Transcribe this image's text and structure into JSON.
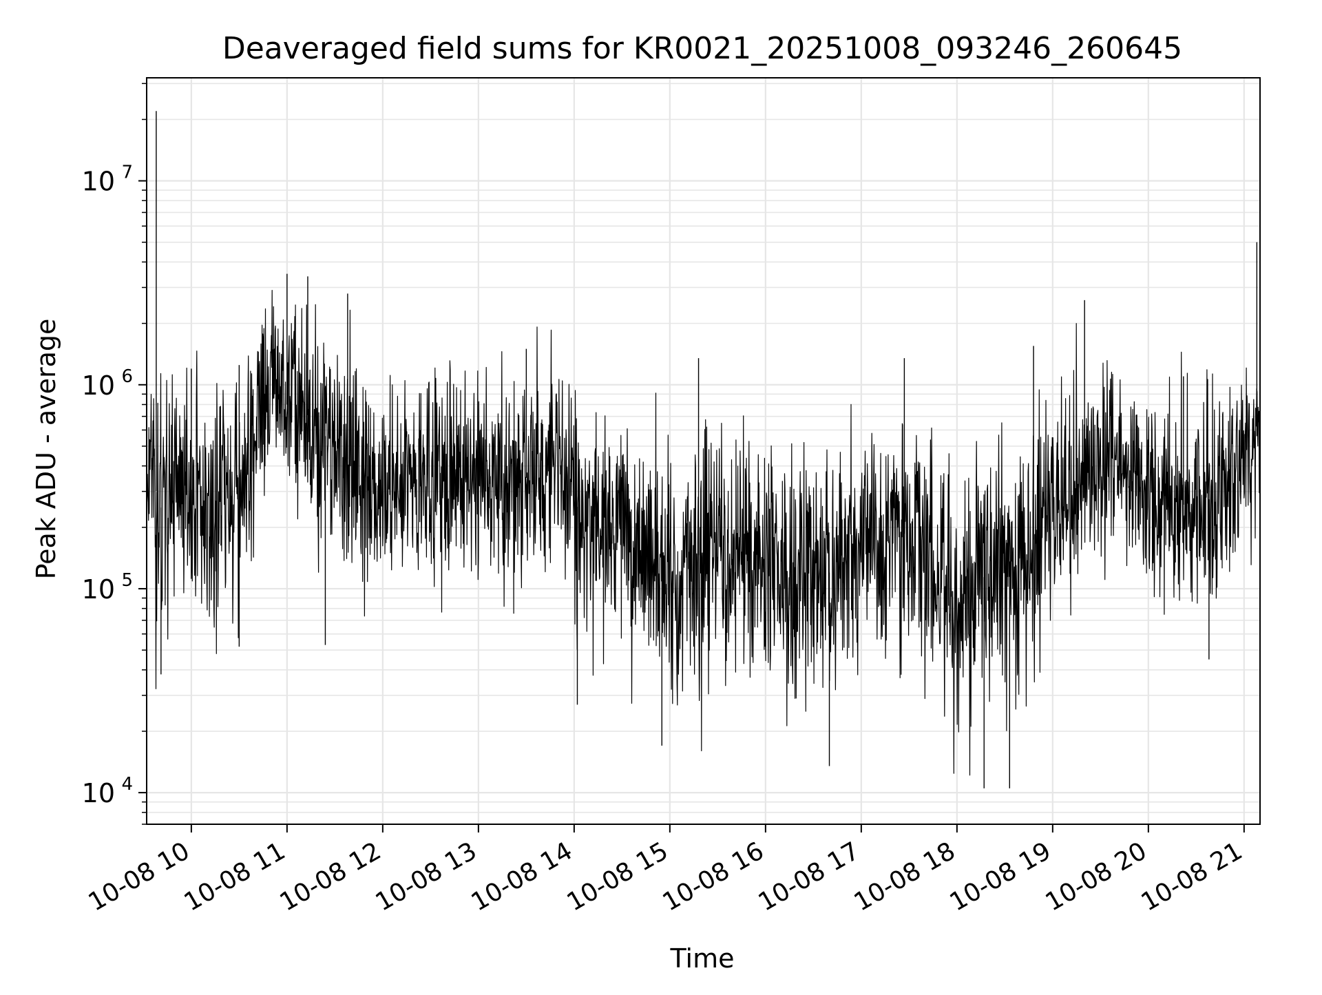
{
  "chart_data": {
    "type": "line",
    "title": "Deaveraged field sums for KR0021_20251008_093246_260645",
    "xlabel": "Time",
    "ylabel": "Peak ADU - average",
    "yscale": "log",
    "ylim": [
      7000,
      32000000
    ],
    "xlim": [
      "2025-10-08 09:32",
      "2025-10-08 21:10"
    ],
    "grid": true,
    "line_color": "#000000",
    "grid_color": "#e6e6e6",
    "y_ticks": [
      {
        "value": 10000,
        "base": "10",
        "exp": "4"
      },
      {
        "value": 100000,
        "base": "10",
        "exp": "5"
      },
      {
        "value": 1000000,
        "base": "10",
        "exp": "6"
      },
      {
        "value": 10000000,
        "base": "10",
        "exp": "7"
      }
    ],
    "x_ticks": [
      {
        "time": "2025-10-08 10:00",
        "label": "10-08 10"
      },
      {
        "time": "2025-10-08 11:00",
        "label": "10-08 11"
      },
      {
        "time": "2025-10-08 12:00",
        "label": "10-08 12"
      },
      {
        "time": "2025-10-08 13:00",
        "label": "10-08 13"
      },
      {
        "time": "2025-10-08 14:00",
        "label": "10-08 14"
      },
      {
        "time": "2025-10-08 15:00",
        "label": "10-08 15"
      },
      {
        "time": "2025-10-08 16:00",
        "label": "10-08 16"
      },
      {
        "time": "2025-10-08 17:00",
        "label": "10-08 17"
      },
      {
        "time": "2025-10-08 18:00",
        "label": "10-08 18"
      },
      {
        "time": "2025-10-08 19:00",
        "label": "10-08 19"
      },
      {
        "time": "2025-10-08 20:00",
        "label": "10-08 20"
      },
      {
        "time": "2025-10-08 21:00",
        "label": "10-08 21"
      }
    ],
    "series": [
      {
        "x": [
          "2025-10-08 09:32",
          "2025-10-08 09:36",
          "2025-10-08 09:40",
          "2025-10-08 09:45",
          "2025-10-08 09:50",
          "2025-10-08 09:55",
          "2025-10-08 10:00",
          "2025-10-08 10:05",
          "2025-10-08 10:10",
          "2025-10-08 10:15",
          "2025-10-08 10:20",
          "2025-10-08 10:25",
          "2025-10-08 10:30",
          "2025-10-08 10:35",
          "2025-10-08 10:40",
          "2025-10-08 10:45",
          "2025-10-08 10:50",
          "2025-10-08 10:55",
          "2025-10-08 11:00",
          "2025-10-08 11:05",
          "2025-10-08 11:10",
          "2025-10-08 11:15",
          "2025-10-08 11:20",
          "2025-10-08 11:25",
          "2025-10-08 11:30",
          "2025-10-08 11:35",
          "2025-10-08 11:40",
          "2025-10-08 11:45",
          "2025-10-08 11:50",
          "2025-10-08 11:55",
          "2025-10-08 12:00",
          "2025-10-08 12:10",
          "2025-10-08 12:20",
          "2025-10-08 12:30",
          "2025-10-08 12:40",
          "2025-10-08 12:50",
          "2025-10-08 13:00",
          "2025-10-08 13:10",
          "2025-10-08 13:20",
          "2025-10-08 13:30",
          "2025-10-08 13:40",
          "2025-10-08 13:50",
          "2025-10-08 14:00",
          "2025-10-08 14:10",
          "2025-10-08 14:20",
          "2025-10-08 14:30",
          "2025-10-08 14:40",
          "2025-10-08 14:50",
          "2025-10-08 15:00",
          "2025-10-08 15:10",
          "2025-10-08 15:20",
          "2025-10-08 15:30",
          "2025-10-08 15:40",
          "2025-10-08 15:50",
          "2025-10-08 16:00",
          "2025-10-08 16:10",
          "2025-10-08 16:20",
          "2025-10-08 16:30",
          "2025-10-08 16:40",
          "2025-10-08 16:50",
          "2025-10-08 17:00",
          "2025-10-08 17:10",
          "2025-10-08 17:20",
          "2025-10-08 17:30",
          "2025-10-08 17:40",
          "2025-10-08 17:50",
          "2025-10-08 18:00",
          "2025-10-08 18:10",
          "2025-10-08 18:20",
          "2025-10-08 18:30",
          "2025-10-08 18:40",
          "2025-10-08 18:50",
          "2025-10-08 19:00",
          "2025-10-08 19:10",
          "2025-10-08 19:20",
          "2025-10-08 19:30",
          "2025-10-08 19:40",
          "2025-10-08 19:50",
          "2025-10-08 20:00",
          "2025-10-08 20:10",
          "2025-10-08 20:20",
          "2025-10-08 20:30",
          "2025-10-08 20:40",
          "2025-10-08 20:50",
          "2025-10-08 21:00",
          "2025-10-08 21:05",
          "2025-10-08 21:10"
        ],
        "median": [
          450000,
          350000,
          250000,
          250000,
          380000,
          300000,
          280000,
          250000,
          230000,
          240000,
          300000,
          350000,
          320000,
          380000,
          500000,
          700000,
          1000000,
          900000,
          800000,
          750000,
          800000,
          650000,
          600000,
          550000,
          500000,
          450000,
          420000,
          350000,
          320000,
          300000,
          280000,
          300000,
          310000,
          330000,
          350000,
          340000,
          330000,
          320000,
          320000,
          350000,
          380000,
          340000,
          260000,
          220000,
          200000,
          180000,
          160000,
          140000,
          120000,
          130000,
          150000,
          160000,
          170000,
          150000,
          130000,
          120000,
          120000,
          110000,
          120000,
          130000,
          160000,
          180000,
          200000,
          180000,
          140000,
          110000,
          80000,
          100000,
          120000,
          130000,
          150000,
          180000,
          230000,
          300000,
          380000,
          450000,
          420000,
          350000,
          280000,
          270000,
          260000,
          250000,
          280000,
          320000,
          400000,
          500000,
          600000
        ],
        "spread": [
          0.45,
          0.55,
          0.6,
          0.55,
          0.45,
          0.5,
          0.5,
          0.45,
          0.45,
          0.5,
          0.5,
          0.5,
          0.5,
          0.5,
          0.5,
          0.45,
          0.42,
          0.42,
          0.45,
          0.45,
          0.45,
          0.45,
          0.45,
          0.45,
          0.45,
          0.45,
          0.45,
          0.45,
          0.45,
          0.45,
          0.45,
          0.45,
          0.45,
          0.45,
          0.45,
          0.45,
          0.45,
          0.45,
          0.45,
          0.45,
          0.45,
          0.45,
          0.45,
          0.45,
          0.5,
          0.5,
          0.52,
          0.52,
          0.55,
          0.55,
          0.55,
          0.55,
          0.55,
          0.55,
          0.55,
          0.55,
          0.55,
          0.55,
          0.55,
          0.55,
          0.52,
          0.5,
          0.5,
          0.5,
          0.5,
          0.55,
          0.6,
          0.6,
          0.6,
          0.6,
          0.55,
          0.5,
          0.45,
          0.42,
          0.4,
          0.4,
          0.4,
          0.42,
          0.45,
          0.45,
          0.45,
          0.45,
          0.45,
          0.42,
          0.4,
          0.35,
          0.35
        ],
        "peaks": [
          {
            "time": "2025-10-08 09:38",
            "value": 22000000
          },
          {
            "time": "2025-10-08 09:41",
            "value": 38000
          },
          {
            "time": "2025-10-08 10:00",
            "value": 1200000
          },
          {
            "time": "2025-10-08 10:30",
            "value": 1250000
          },
          {
            "time": "2025-10-08 10:30",
            "value": 52000
          },
          {
            "time": "2025-10-08 11:00",
            "value": 3500000
          },
          {
            "time": "2025-10-08 11:13",
            "value": 3400000
          },
          {
            "time": "2025-10-08 11:24",
            "value": 53000
          },
          {
            "time": "2025-10-08 11:38",
            "value": 2800000
          },
          {
            "time": "2025-10-08 13:30",
            "value": 1500000
          },
          {
            "time": "2025-10-08 14:02",
            "value": 27000
          },
          {
            "time": "2025-10-08 14:55",
            "value": 17000
          },
          {
            "time": "2025-10-08 15:18",
            "value": 1350000
          },
          {
            "time": "2025-10-08 16:40",
            "value": 13500
          },
          {
            "time": "2025-10-08 17:27",
            "value": 1350000
          },
          {
            "time": "2025-10-08 18:17",
            "value": 10500
          },
          {
            "time": "2025-10-08 18:33",
            "value": 10500
          },
          {
            "time": "2025-10-08 18:48",
            "value": 1550000
          },
          {
            "time": "2025-10-08 19:20",
            "value": 2600000
          },
          {
            "time": "2025-10-08 20:22",
            "value": 1100000
          },
          {
            "time": "2025-10-08 20:38",
            "value": 45000
          },
          {
            "time": "2025-10-08 21:08",
            "value": 5000000
          }
        ]
      }
    ]
  }
}
